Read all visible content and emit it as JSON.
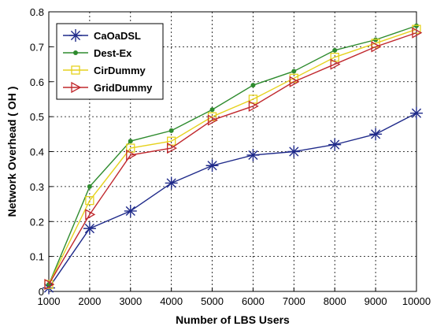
{
  "chart_data": {
    "type": "line",
    "title": "",
    "xlabel": "Number of LBS Users",
    "ylabel": "Network Overhead ( OH )",
    "x": [
      1000,
      2000,
      3000,
      4000,
      5000,
      6000,
      7000,
      8000,
      9000,
      10000
    ],
    "xlim": [
      1000,
      10000
    ],
    "ylim": [
      0,
      0.8
    ],
    "xticks": [
      "1000",
      "2000",
      "3000",
      "4000",
      "5000",
      "6000",
      "7000",
      "8000",
      "9000",
      "10000"
    ],
    "yticks": [
      "0",
      "0.1",
      "0.2",
      "0.3",
      "0.4",
      "0.5",
      "0.6",
      "0.7",
      "0.8"
    ],
    "grid": true,
    "legend_position": "top-left",
    "series": [
      {
        "name": "CaOaDSL",
        "color": "#1f2a8a",
        "marker": "asterisk",
        "values": [
          0.01,
          0.18,
          0.23,
          0.31,
          0.36,
          0.39,
          0.4,
          0.42,
          0.45,
          0.51
        ]
      },
      {
        "name": "Dest-Ex",
        "color": "#2e8b2e",
        "marker": "dot",
        "values": [
          0.02,
          0.3,
          0.43,
          0.46,
          0.52,
          0.59,
          0.63,
          0.69,
          0.72,
          0.76
        ]
      },
      {
        "name": "CirDummy",
        "color": "#e6d21e",
        "marker": "square",
        "values": [
          0.02,
          0.26,
          0.41,
          0.43,
          0.5,
          0.55,
          0.61,
          0.67,
          0.71,
          0.75
        ]
      },
      {
        "name": "GridDummy",
        "color": "#c0282d",
        "marker": "triangle-right",
        "values": [
          0.02,
          0.22,
          0.39,
          0.41,
          0.49,
          0.53,
          0.6,
          0.65,
          0.7,
          0.74
        ]
      }
    ]
  }
}
